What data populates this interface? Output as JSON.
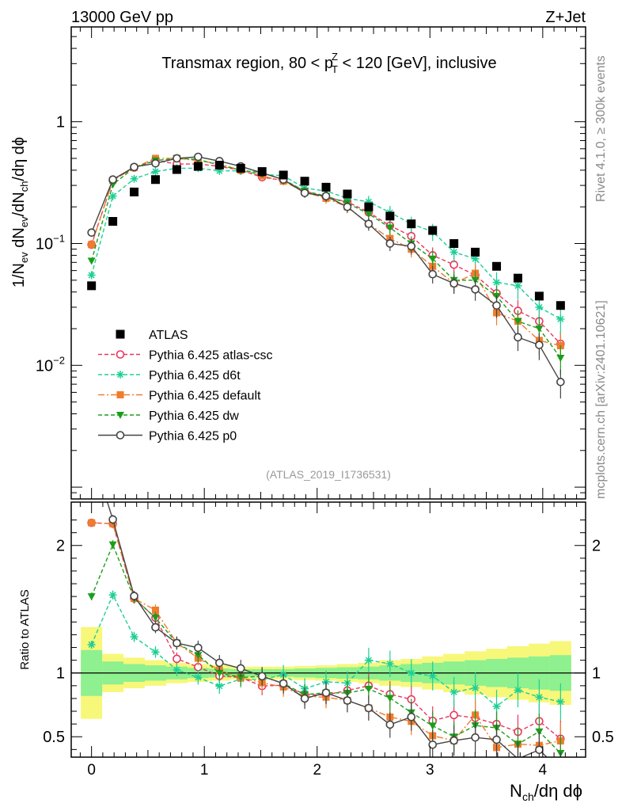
{
  "header": {
    "left": "13000 GeV pp",
    "right": "Z+Jet"
  },
  "side_labels": {
    "rivet": "Rivet 4.1.0, ≥ 300k events",
    "mcplots": "mcplots.cern.ch [arXiv:2401.10621]"
  },
  "chart_data": {
    "type": "scatter",
    "title": "Transmax region, 80 < p_T^Z < 120 [GeV], inclusive",
    "title_parts": {
      "pre": "Transmax region, 80 < p",
      "sup": "Z",
      "sub": "T",
      "post": " < 120 [GeV], inclusive"
    },
    "analysis_tag": "(ATLAS_2019_I1736531)",
    "xlabel": "N_ch/dη dϕ",
    "ylabel_main": "1/N_ev dN_ev/dN_ch/dη dϕ",
    "ylabel_ratio": "Ratio to ATLAS",
    "xlim": [
      -0.18,
      4.38
    ],
    "ylim_main": [
      0.0008,
      6
    ],
    "ylim_ratio": [
      0.34,
      2.34
    ],
    "main_yscale": "log",
    "x_ticks": [
      "0",
      "1",
      "2",
      "3",
      "4"
    ],
    "y_ticks_main": [
      {
        "value": 1,
        "base": "1",
        "exp": ""
      },
      {
        "value": 0.1,
        "base": "10",
        "exp": "−1"
      },
      {
        "value": 0.01,
        "base": "10",
        "exp": "−2"
      }
    ],
    "y_ticks_ratio": [
      "0.5",
      "1",
      "2"
    ],
    "x": [
      0,
      0.189,
      0.378,
      0.567,
      0.756,
      0.945,
      1.134,
      1.323,
      1.512,
      1.701,
      1.89,
      2.079,
      2.268,
      2.457,
      2.646,
      2.835,
      3.024,
      3.213,
      3.402,
      3.591,
      3.78,
      3.969,
      4.158
    ],
    "data_series": {
      "name": "ATLAS",
      "values": [
        0.045,
        0.152,
        0.265,
        0.335,
        0.405,
        0.43,
        0.44,
        0.415,
        0.39,
        0.365,
        0.325,
        0.29,
        0.255,
        0.2,
        0.168,
        0.145,
        0.128,
        0.1,
        0.085,
        0.065,
        0.052,
        0.037,
        0.031
      ],
      "band_inner": [
        0.18,
        0.09,
        0.07,
        0.06,
        0.05,
        0.04,
        0.035,
        0.03,
        0.03,
        0.03,
        0.035,
        0.04,
        0.045,
        0.05,
        0.06,
        0.07,
        0.08,
        0.09,
        0.1,
        0.11,
        0.12,
        0.13,
        0.14
      ],
      "band_outer": [
        0.36,
        0.15,
        0.12,
        0.1,
        0.08,
        0.07,
        0.06,
        0.05,
        0.05,
        0.05,
        0.055,
        0.06,
        0.07,
        0.08,
        0.1,
        0.11,
        0.13,
        0.15,
        0.17,
        0.19,
        0.21,
        0.23,
        0.25
      ]
    },
    "series": [
      {
        "name": "Pythia 6.425 atlas-csc",
        "color": "#e8365e",
        "marker": "open-circle",
        "dash": "5,3",
        "values": [
          0.098,
          0.33,
          0.42,
          0.48,
          0.45,
          0.45,
          0.43,
          0.4,
          0.35,
          0.33,
          0.27,
          0.24,
          0.22,
          0.18,
          0.14,
          0.115,
          0.08,
          0.067,
          0.055,
          0.039,
          0.028,
          0.023,
          0.015
        ]
      },
      {
        "name": "Pythia 6.425 d6t",
        "color": "#1ccf96",
        "marker": "asterisk",
        "dash": "5,3",
        "values": [
          0.055,
          0.245,
          0.34,
          0.39,
          0.415,
          0.415,
          0.395,
          0.395,
          0.37,
          0.36,
          0.285,
          0.27,
          0.235,
          0.22,
          0.18,
          0.145,
          0.125,
          0.085,
          0.075,
          0.048,
          0.045,
          0.03,
          0.024
        ]
      },
      {
        "name": "Pythia 6.425 default",
        "color": "#f07c2d",
        "marker": "filled-square",
        "dash": "8,3,2,3",
        "values": [
          0.098,
          0.33,
          0.42,
          0.5,
          0.5,
          0.48,
          0.45,
          0.4,
          0.36,
          0.325,
          0.265,
          0.235,
          0.2,
          0.145,
          0.11,
          0.09,
          0.065,
          0.047,
          0.057,
          0.027,
          0.023,
          0.016,
          0.0145
        ]
      },
      {
        "name": "Pythia 6.425 dw",
        "color": "#1a9e1a",
        "marker": "filled-triangle-down",
        "dash": "5,3",
        "values": [
          0.072,
          0.305,
          0.42,
          0.48,
          0.5,
          0.49,
          0.44,
          0.4,
          0.38,
          0.335,
          0.27,
          0.245,
          0.215,
          0.175,
          0.135,
          0.1,
          0.075,
          0.05,
          0.05,
          0.037,
          0.023,
          0.02,
          0.0115
        ]
      },
      {
        "name": "Pythia 6.425 p0",
        "color": "#444444",
        "marker": "open-circle",
        "dash": "",
        "values": [
          0.123,
          0.335,
          0.425,
          0.455,
          0.5,
          0.515,
          0.475,
          0.43,
          0.38,
          0.335,
          0.26,
          0.245,
          0.2,
          0.145,
          0.1,
          0.095,
          0.056,
          0.047,
          0.042,
          0.031,
          0.017,
          0.0147,
          0.0073
        ]
      }
    ]
  }
}
